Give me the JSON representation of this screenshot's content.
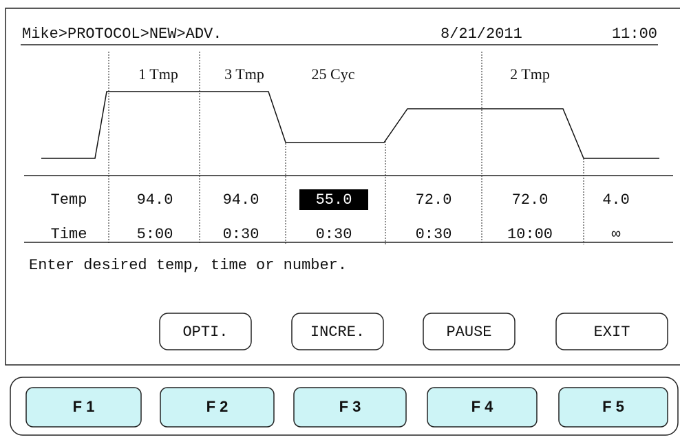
{
  "header": {
    "breadcrumb": "Mike>PROTOCOL>NEW>ADV.",
    "date": "8/21/2011",
    "time": "11:00"
  },
  "step_labels": [
    "1 Tmp",
    "3 Tmp",
    "25 Cyc",
    "2 Tmp"
  ],
  "table": {
    "rows": [
      {
        "label": "Temp",
        "values": [
          "94.0",
          "94.0",
          "55.0",
          "72.0",
          "72.0",
          "4.0"
        ]
      },
      {
        "label": "Time",
        "values": [
          "5:00",
          "0:30",
          "0:30",
          "0:30",
          "10:00",
          "∞"
        ]
      }
    ]
  },
  "message": "Enter desired temp, time or number.",
  "softkeys": [
    "OPTI.",
    "INCRE.",
    "PAUSE",
    "EXIT"
  ],
  "function_keys": [
    "F 1",
    "F 2",
    "F 3",
    "F 4",
    "F 5"
  ]
}
